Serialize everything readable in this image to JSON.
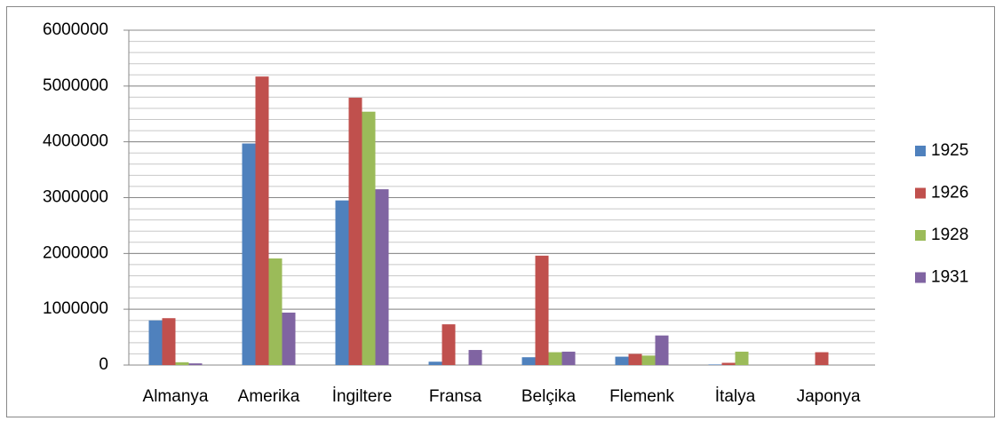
{
  "chart_data": {
    "type": "bar",
    "categories": [
      "Almanya",
      "Amerika",
      "İngiltere",
      "Fransa",
      "Belçika",
      "Flemenk",
      "İtalya",
      "Japonya"
    ],
    "series": [
      {
        "name": "1925",
        "color": "#4f81bd",
        "values": [
          800000,
          3970000,
          2950000,
          60000,
          140000,
          150000,
          10000,
          0
        ]
      },
      {
        "name": "1926",
        "color": "#c0504d",
        "values": [
          840000,
          5170000,
          4790000,
          730000,
          1960000,
          200000,
          40000,
          230000
        ]
      },
      {
        "name": "1928",
        "color": "#9bbb59",
        "values": [
          50000,
          1910000,
          4540000,
          0,
          230000,
          170000,
          240000,
          0
        ]
      },
      {
        "name": "1931",
        "color": "#8064a2",
        "values": [
          30000,
          940000,
          3150000,
          270000,
          240000,
          530000,
          0,
          0
        ]
      }
    ],
    "ylim": [
      0,
      6000000
    ],
    "yticks": [
      0,
      1000000,
      2000000,
      3000000,
      4000000,
      5000000,
      6000000
    ],
    "minor_tick_interval": 200000,
    "grid": true,
    "legend": "right"
  }
}
